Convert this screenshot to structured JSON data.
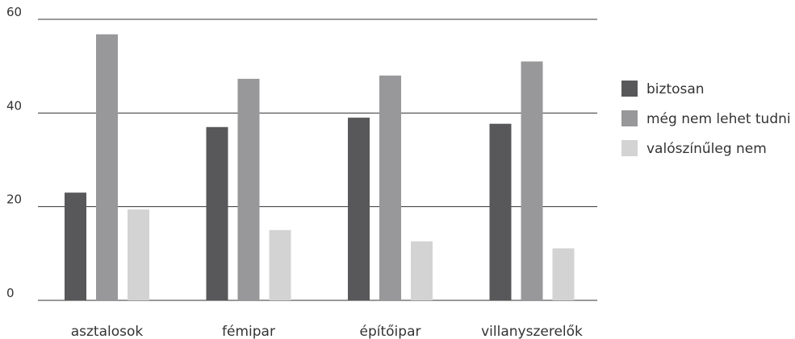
{
  "chart_data": {
    "type": "bar",
    "categories": [
      "asztalosok",
      "fémipar",
      "építőipar",
      "villanyszerelők"
    ],
    "series": [
      {
        "name": "biztosan",
        "values": [
          23,
          37,
          39,
          37.7
        ],
        "color": "#58585a"
      },
      {
        "name": "még nem lehet tudni",
        "values": [
          56.8,
          47.3,
          48,
          51
        ],
        "color": "#98989a"
      },
      {
        "name": "valószínűleg nem",
        "values": [
          19.4,
          15,
          12.6,
          11.1
        ],
        "color": "#d3d3d4"
      }
    ],
    "ylim": [
      0,
      60
    ],
    "yticks": [
      "0",
      "20",
      "40",
      "60"
    ],
    "title": "",
    "xlabel": "",
    "ylabel": "",
    "grid": true,
    "legend_position": "right"
  }
}
